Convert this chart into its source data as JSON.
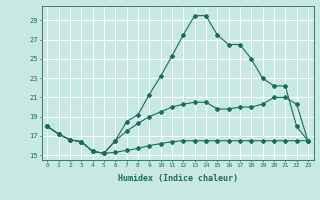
{
  "xlabel": "Humidex (Indice chaleur)",
  "background_color": "#c8e8e4",
  "grid_color": "#b0d8d4",
  "line_color": "#1a6b60",
  "xlim": [
    -0.5,
    23.5
  ],
  "ylim": [
    14.5,
    30.5
  ],
  "xticks": [
    0,
    1,
    2,
    3,
    4,
    5,
    6,
    7,
    8,
    9,
    10,
    11,
    12,
    13,
    14,
    15,
    16,
    17,
    18,
    19,
    20,
    21,
    22,
    23
  ],
  "yticks": [
    15,
    17,
    19,
    21,
    23,
    25,
    27,
    29
  ],
  "curve1_x": [
    0,
    1,
    2,
    3,
    4,
    5,
    6,
    7,
    8,
    9,
    10,
    11,
    12,
    13,
    14,
    15,
    16,
    17,
    18,
    19,
    20,
    21,
    22,
    23
  ],
  "curve1_y": [
    18.0,
    17.2,
    16.6,
    16.4,
    15.4,
    15.2,
    16.5,
    18.5,
    19.2,
    21.3,
    23.2,
    25.3,
    27.5,
    29.5,
    29.5,
    27.5,
    26.5,
    26.5,
    25.0,
    23.0,
    22.2,
    22.2,
    18.0,
    16.5
  ],
  "curve2_x": [
    0,
    1,
    2,
    3,
    4,
    5,
    6,
    7,
    8,
    9,
    10,
    11,
    12,
    13,
    14,
    15,
    16,
    17,
    18,
    19,
    20,
    21,
    22,
    23
  ],
  "curve2_y": [
    18.0,
    17.2,
    16.6,
    16.4,
    15.4,
    15.2,
    16.5,
    17.5,
    18.3,
    19.0,
    19.5,
    20.0,
    20.3,
    20.5,
    20.5,
    19.8,
    19.8,
    20.0,
    20.0,
    20.3,
    21.0,
    21.0,
    20.3,
    16.5
  ],
  "curve3_x": [
    0,
    1,
    2,
    3,
    4,
    5,
    6,
    7,
    8,
    9,
    10,
    11,
    12,
    13,
    14,
    15,
    16,
    17,
    18,
    19,
    20,
    21,
    22,
    23
  ],
  "curve3_y": [
    18.0,
    17.2,
    16.6,
    16.4,
    15.4,
    15.2,
    15.3,
    15.5,
    15.7,
    16.0,
    16.2,
    16.4,
    16.5,
    16.5,
    16.5,
    16.5,
    16.5,
    16.5,
    16.5,
    16.5,
    16.5,
    16.5,
    16.5,
    16.5
  ]
}
